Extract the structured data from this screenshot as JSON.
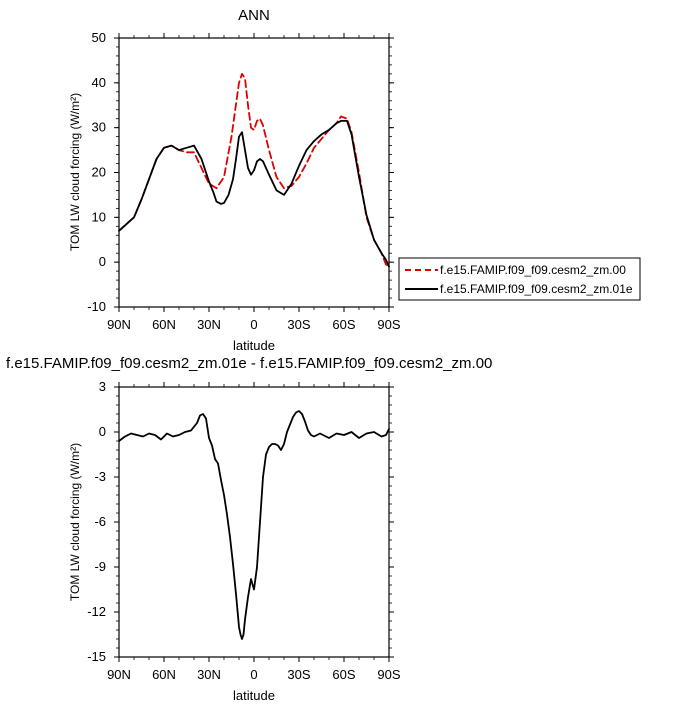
{
  "chart_data": [
    {
      "type": "line",
      "title": "ANN",
      "xlabel": "latitude",
      "ylabel": "TOM LW cloud forcing (W/m²)",
      "xlim": [
        90,
        -90
      ],
      "ylim": [
        -10,
        50
      ],
      "xticks": [
        90,
        60,
        30,
        0,
        -30,
        -60,
        -90
      ],
      "xtick_labels": [
        "90N",
        "60N",
        "30N",
        "0",
        "30S",
        "60S",
        "90S"
      ],
      "yticks": [
        -10,
        0,
        10,
        20,
        30,
        40,
        50
      ],
      "ytick_labels": [
        "-10",
        "0",
        "10",
        "20",
        "30",
        "40",
        "50"
      ],
      "legend_position": "right",
      "series": [
        {
          "name": "f.e15.FAMIP.f09_f09.cesm2_zm.00",
          "color": "#e00000",
          "dash": "dashed",
          "x": [
            90,
            85,
            80,
            75,
            70,
            65,
            60,
            55,
            50,
            45,
            40,
            35,
            30,
            25,
            20,
            15,
            10,
            8,
            6,
            4,
            2,
            0,
            -2,
            -4,
            -6,
            -10,
            -15,
            -20,
            -25,
            -30,
            -35,
            -40,
            -45,
            -50,
            -55,
            -58,
            -62,
            -65,
            -70,
            -75,
            -80,
            -85,
            -88,
            -90
          ],
          "y": [
            7,
            8.5,
            10,
            14,
            18.5,
            23,
            25.5,
            26,
            25,
            24.5,
            24.5,
            21,
            17.5,
            16.5,
            19,
            28,
            40,
            42,
            41,
            35,
            30,
            29.5,
            31.5,
            32,
            30.5,
            25,
            19,
            16.5,
            17,
            19,
            22,
            25.5,
            27.5,
            29.5,
            31,
            32.5,
            32,
            29,
            20,
            10,
            5,
            2,
            -0.5,
            -1
          ]
        },
        {
          "name": "f.e15.FAMIP.f09_f09.cesm2_zm.01e",
          "color": "#000000",
          "dash": "solid",
          "x": [
            90,
            85,
            80,
            75,
            70,
            65,
            60,
            55,
            50,
            45,
            40,
            35,
            30,
            27,
            25,
            22,
            20,
            17,
            14,
            12,
            10,
            8,
            6,
            4,
            2,
            0,
            -2,
            -4,
            -6,
            -10,
            -15,
            -20,
            -25,
            -30,
            -35,
            -40,
            -45,
            -50,
            -55,
            -58,
            -62,
            -65,
            -70,
            -75,
            -80,
            -85,
            -88,
            -90
          ],
          "y": [
            7,
            8.5,
            10,
            14,
            18.5,
            23,
            25.5,
            26,
            25,
            25.5,
            26,
            23,
            18,
            15.5,
            13.5,
            13,
            13.2,
            15,
            18.5,
            23,
            28,
            29,
            25,
            21,
            19.5,
            20.5,
            22.5,
            23,
            22.5,
            19.5,
            16,
            15,
            17.5,
            21.5,
            25,
            27,
            28.5,
            29.5,
            31,
            31.5,
            31.5,
            28.5,
            19,
            10.5,
            5,
            2,
            0.5,
            -1
          ]
        }
      ]
    },
    {
      "type": "line",
      "title": "f.e15.FAMIP.f09_f09.cesm2_zm.01e - f.e15.FAMIP.f09_f09.cesm2_zm.00",
      "xlabel": "latitude",
      "ylabel": "TOM LW cloud forcing (W/m²)",
      "xlim": [
        90,
        -90
      ],
      "ylim": [
        -15,
        3
      ],
      "xticks": [
        90,
        60,
        30,
        0,
        -30,
        -60,
        -90
      ],
      "xtick_labels": [
        "90N",
        "60N",
        "30N",
        "0",
        "30S",
        "60S",
        "90S"
      ],
      "yticks": [
        -15,
        -12,
        -9,
        -6,
        -3,
        0,
        3
      ],
      "ytick_labels": [
        "-15",
        "-12",
        "-9",
        "-6",
        "-3",
        "0",
        "3"
      ],
      "series": [
        {
          "color": "#000000",
          "dash": "solid",
          "x": [
            90,
            86,
            82,
            78,
            74,
            70,
            66,
            62,
            58,
            54,
            50,
            46,
            42,
            38,
            36,
            34,
            32,
            30,
            28,
            26,
            24,
            22,
            20,
            18,
            16,
            14,
            12,
            10,
            9,
            8,
            7,
            6,
            4,
            2,
            0,
            -2,
            -4,
            -6,
            -8,
            -10,
            -12,
            -14,
            -16,
            -18,
            -20,
            -22,
            -24,
            -26,
            -28,
            -30,
            -32,
            -34,
            -36,
            -38,
            -40,
            -42,
            -44,
            -46,
            -50,
            -55,
            -60,
            -65,
            -70,
            -75,
            -80,
            -85,
            -88,
            -90
          ],
          "y": [
            -0.6,
            -0.3,
            -0.1,
            -0.2,
            -0.3,
            -0.1,
            -0.2,
            -0.5,
            -0.1,
            -0.3,
            -0.2,
            0,
            0.1,
            0.6,
            1.1,
            1.2,
            0.9,
            -0.4,
            -0.9,
            -1.8,
            -2.1,
            -3.2,
            -4.2,
            -5.5,
            -7,
            -8.8,
            -10.8,
            -13,
            -13.5,
            -13.8,
            -13.5,
            -12.5,
            -11,
            -9.8,
            -10.5,
            -9,
            -6,
            -3,
            -1.5,
            -1,
            -0.8,
            -0.8,
            -0.9,
            -1.2,
            -0.8,
            0,
            0.5,
            1,
            1.3,
            1.4,
            1.2,
            0.7,
            0.1,
            -0.2,
            -0.3,
            -0.2,
            -0.1,
            -0.2,
            -0.4,
            -0.1,
            -0.2,
            0,
            -0.4,
            -0.1,
            0,
            -0.3,
            -0.2,
            0.2
          ]
        }
      ]
    }
  ]
}
